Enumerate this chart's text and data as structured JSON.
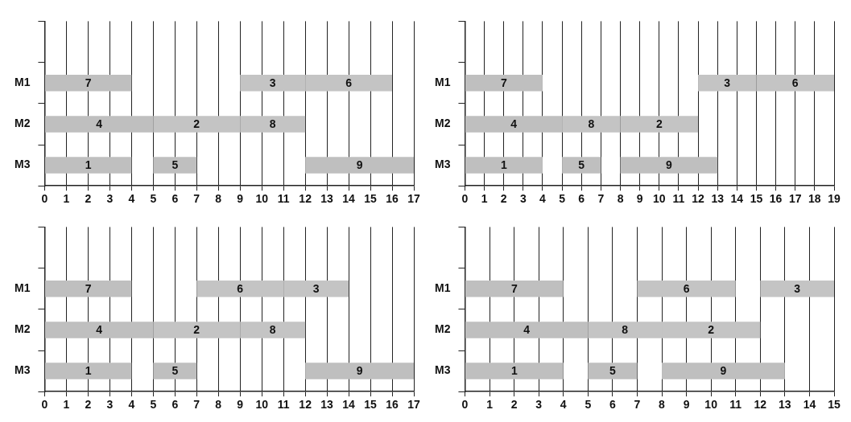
{
  "chart_data": [
    {
      "type": "bar",
      "orientation": "horizontal",
      "categories": [
        null,
        "M1",
        "M2",
        "M3"
      ],
      "xlim": [
        0,
        17
      ],
      "xticks": [
        0,
        1,
        2,
        3,
        4,
        5,
        6,
        7,
        8,
        9,
        10,
        11,
        12,
        13,
        14,
        15,
        16,
        17
      ],
      "grid": "x",
      "series": [
        {
          "name": "1",
          "color": "#bfbfbf",
          "values": [
            null,
            null,
            null,
            4
          ],
          "base": [
            null,
            null,
            null,
            0
          ]
        },
        {
          "name": "2",
          "color": "#c4c4c4",
          "values": [
            null,
            null,
            4,
            null
          ],
          "base": [
            null,
            null,
            5,
            null
          ]
        },
        {
          "name": "3",
          "color": "#c4c4c4",
          "values": [
            null,
            3,
            null,
            null
          ],
          "base": [
            null,
            9,
            null,
            null
          ]
        },
        {
          "name": "4",
          "color": "#bfbfbf",
          "values": [
            null,
            null,
            5,
            null
          ],
          "base": [
            null,
            null,
            0,
            null
          ]
        },
        {
          "name": "5",
          "color": "#bfbfbf",
          "values": [
            null,
            null,
            null,
            2
          ],
          "base": [
            null,
            null,
            null,
            5
          ]
        },
        {
          "name": "6",
          "color": "#c4c4c4",
          "values": [
            null,
            4,
            null,
            null
          ],
          "base": [
            null,
            12,
            null,
            null
          ]
        },
        {
          "name": "7",
          "color": "#bfbfbf",
          "values": [
            null,
            4,
            null,
            null
          ],
          "base": [
            null,
            0,
            null,
            null
          ]
        },
        {
          "name": "8",
          "color": "#c4c4c4",
          "values": [
            null,
            null,
            3,
            null
          ],
          "base": [
            null,
            null,
            9,
            null
          ]
        },
        {
          "name": "9",
          "color": "#bfbfbf",
          "values": [
            null,
            null,
            null,
            5
          ],
          "base": [
            null,
            null,
            null,
            12
          ]
        }
      ]
    },
    {
      "type": "bar",
      "orientation": "horizontal",
      "categories": [
        null,
        "M1",
        "M2",
        "M3"
      ],
      "xlim": [
        0,
        19
      ],
      "xticks": [
        0,
        1,
        2,
        3,
        4,
        5,
        6,
        7,
        8,
        9,
        10,
        11,
        12,
        13,
        14,
        15,
        16,
        17,
        18,
        19
      ],
      "grid": "x",
      "series": [
        {
          "name": "1",
          "color": "#bfbfbf",
          "values": [
            null,
            null,
            null,
            4
          ],
          "base": [
            null,
            null,
            null,
            0
          ]
        },
        {
          "name": "2",
          "color": "#c4c4c4",
          "values": [
            null,
            null,
            4,
            null
          ],
          "base": [
            null,
            null,
            8,
            null
          ]
        },
        {
          "name": "3",
          "color": "#c4c4c4",
          "values": [
            null,
            3,
            null,
            null
          ],
          "base": [
            null,
            12,
            null,
            null
          ]
        },
        {
          "name": "4",
          "color": "#bfbfbf",
          "values": [
            null,
            null,
            5,
            null
          ],
          "base": [
            null,
            null,
            0,
            null
          ]
        },
        {
          "name": "5",
          "color": "#bfbfbf",
          "values": [
            null,
            null,
            null,
            2
          ],
          "base": [
            null,
            null,
            null,
            5
          ]
        },
        {
          "name": "6",
          "color": "#c4c4c4",
          "values": [
            null,
            4,
            null,
            null
          ],
          "base": [
            null,
            15,
            null,
            null
          ]
        },
        {
          "name": "7",
          "color": "#bfbfbf",
          "values": [
            null,
            4,
            null,
            null
          ],
          "base": [
            null,
            0,
            null,
            null
          ]
        },
        {
          "name": "8",
          "color": "#c4c4c4",
          "values": [
            null,
            null,
            3,
            null
          ],
          "base": [
            null,
            null,
            5,
            null
          ]
        },
        {
          "name": "9",
          "color": "#bfbfbf",
          "values": [
            null,
            null,
            null,
            5
          ],
          "base": [
            null,
            null,
            null,
            8
          ]
        }
      ]
    },
    {
      "type": "bar",
      "orientation": "horizontal",
      "categories": [
        null,
        "M1",
        "M2",
        "M3"
      ],
      "xlim": [
        0,
        17
      ],
      "xticks": [
        0,
        1,
        2,
        3,
        4,
        5,
        6,
        7,
        8,
        9,
        10,
        11,
        12,
        13,
        14,
        15,
        16,
        17
      ],
      "grid": "x",
      "series": [
        {
          "name": "1",
          "color": "#bfbfbf",
          "values": [
            null,
            null,
            null,
            4
          ],
          "base": [
            null,
            null,
            null,
            0
          ]
        },
        {
          "name": "2",
          "color": "#c4c4c4",
          "values": [
            null,
            null,
            4,
            null
          ],
          "base": [
            null,
            null,
            5,
            null
          ]
        },
        {
          "name": "3",
          "color": "#c4c4c4",
          "values": [
            null,
            3,
            null,
            null
          ],
          "base": [
            null,
            11,
            null,
            null
          ]
        },
        {
          "name": "4",
          "color": "#bfbfbf",
          "values": [
            null,
            null,
            5,
            null
          ],
          "base": [
            null,
            null,
            0,
            null
          ]
        },
        {
          "name": "5",
          "color": "#bfbfbf",
          "values": [
            null,
            null,
            null,
            2
          ],
          "base": [
            null,
            null,
            null,
            5
          ]
        },
        {
          "name": "6",
          "color": "#c4c4c4",
          "values": [
            null,
            4,
            null,
            null
          ],
          "base": [
            null,
            7,
            null,
            null
          ]
        },
        {
          "name": "7",
          "color": "#bfbfbf",
          "values": [
            null,
            4,
            null,
            null
          ],
          "base": [
            null,
            0,
            null,
            null
          ]
        },
        {
          "name": "8",
          "color": "#c4c4c4",
          "values": [
            null,
            null,
            3,
            null
          ],
          "base": [
            null,
            null,
            9,
            null
          ]
        },
        {
          "name": "9",
          "color": "#bfbfbf",
          "values": [
            null,
            null,
            null,
            5
          ],
          "base": [
            null,
            null,
            null,
            12
          ]
        }
      ]
    },
    {
      "type": "bar",
      "orientation": "horizontal",
      "categories": [
        null,
        "M1",
        "M2",
        "M3"
      ],
      "xlim": [
        0,
        15
      ],
      "xticks": [
        0,
        1,
        2,
        3,
        4,
        5,
        6,
        7,
        8,
        9,
        10,
        11,
        12,
        13,
        14,
        15
      ],
      "grid": "x",
      "series": [
        {
          "name": "1",
          "color": "#bfbfbf",
          "values": [
            null,
            null,
            null,
            4
          ],
          "base": [
            null,
            null,
            null,
            0
          ]
        },
        {
          "name": "2",
          "color": "#c4c4c4",
          "values": [
            null,
            null,
            4,
            null
          ],
          "base": [
            null,
            null,
            8,
            null
          ]
        },
        {
          "name": "3",
          "color": "#c4c4c4",
          "values": [
            null,
            3,
            null,
            null
          ],
          "base": [
            null,
            12,
            null,
            null
          ]
        },
        {
          "name": "4",
          "color": "#bfbfbf",
          "values": [
            null,
            null,
            5,
            null
          ],
          "base": [
            null,
            null,
            0,
            null
          ]
        },
        {
          "name": "5",
          "color": "#bfbfbf",
          "values": [
            null,
            null,
            null,
            2
          ],
          "base": [
            null,
            null,
            null,
            5
          ]
        },
        {
          "name": "6",
          "color": "#c4c4c4",
          "values": [
            null,
            4,
            null,
            null
          ],
          "base": [
            null,
            7,
            null,
            null
          ]
        },
        {
          "name": "7",
          "color": "#bfbfbf",
          "values": [
            null,
            4,
            null,
            null
          ],
          "base": [
            null,
            0,
            null,
            null
          ]
        },
        {
          "name": "8",
          "color": "#c4c4c4",
          "values": [
            null,
            null,
            3,
            null
          ],
          "base": [
            null,
            null,
            5,
            null
          ]
        },
        {
          "name": "9",
          "color": "#bfbfbf",
          "values": [
            null,
            null,
            null,
            5
          ],
          "base": [
            null,
            null,
            null,
            8
          ]
        }
      ]
    }
  ]
}
